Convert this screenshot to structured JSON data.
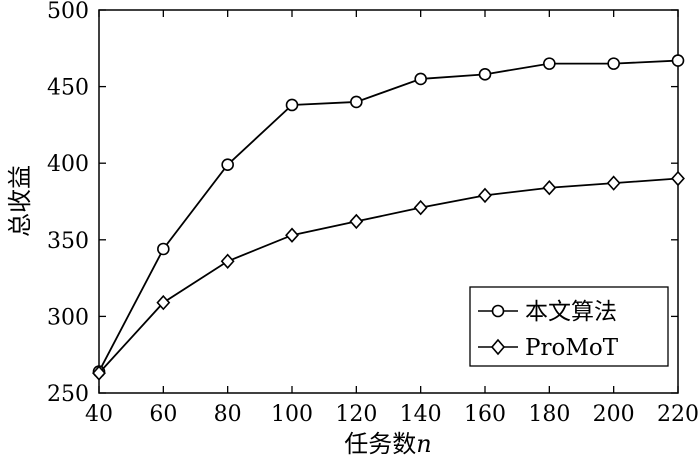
{
  "chart_data": {
    "type": "line",
    "title": "",
    "xlabel": "任务数n",
    "xlabel_main": "任务数",
    "xlabel_var": "n",
    "ylabel": "总收益",
    "x": [
      40,
      60,
      80,
      100,
      120,
      140,
      160,
      180,
      200,
      220
    ],
    "xticks": [
      "40",
      "60",
      "80",
      "100",
      "120",
      "140",
      "160",
      "180",
      "200",
      "220"
    ],
    "yticks": [
      "250",
      "300",
      "350",
      "400",
      "450",
      "500"
    ],
    "xlim": [
      40,
      220
    ],
    "ylim": [
      250,
      500
    ],
    "grid": false,
    "legend_position": "lower-right",
    "series": [
      {
        "name": "本文算法",
        "marker": "circle",
        "values": [
          264,
          344,
          399,
          438,
          440,
          455,
          458,
          465,
          465,
          467
        ]
      },
      {
        "name": "ProMoT",
        "marker": "diamond",
        "values": [
          263,
          309,
          336,
          353,
          362,
          371,
          379,
          384,
          387,
          390
        ]
      }
    ]
  }
}
